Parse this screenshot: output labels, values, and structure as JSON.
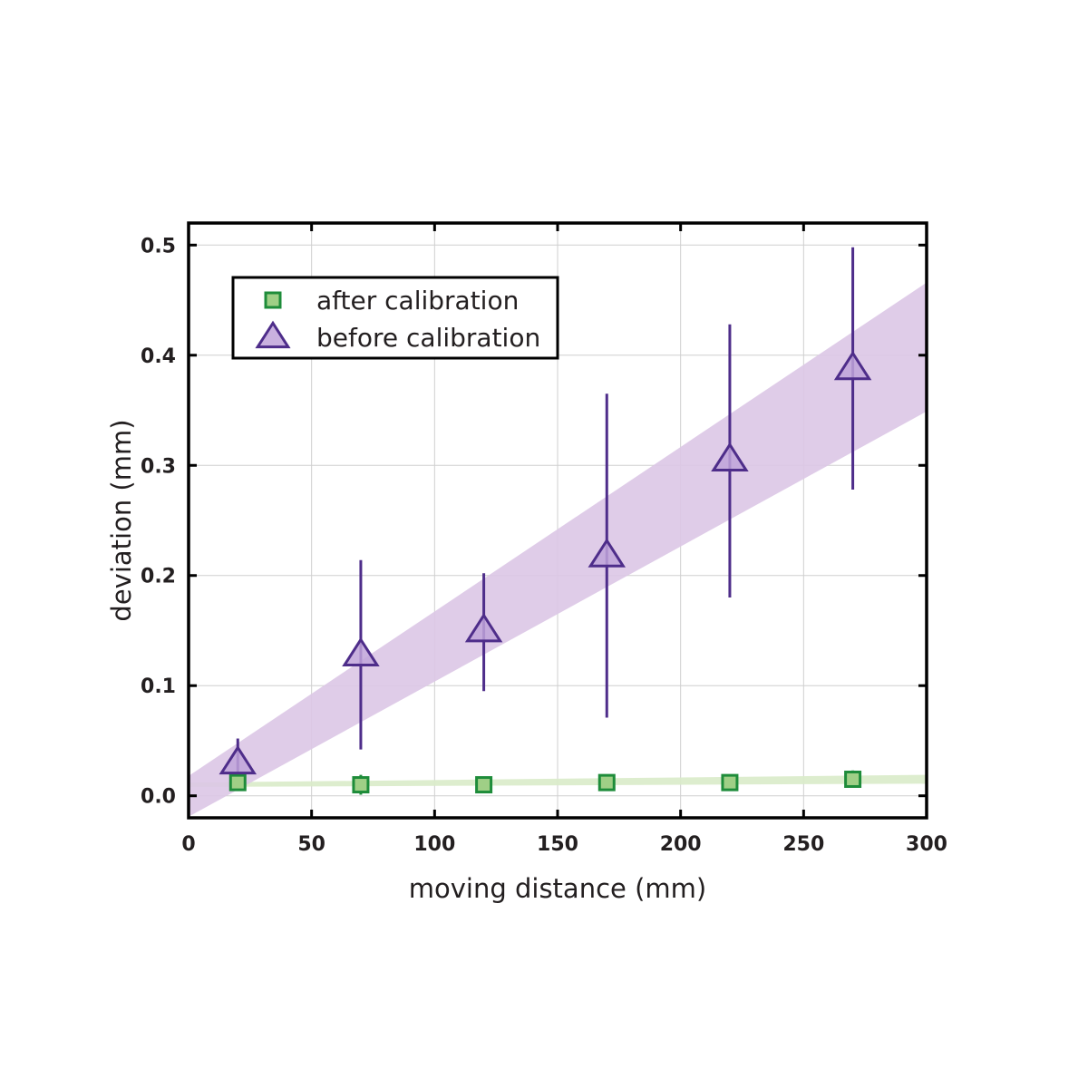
{
  "chart_data": {
    "type": "scatter",
    "title": "",
    "xlabel": "moving distance (mm)",
    "ylabel": "deviation (mm)",
    "xlim": [
      0,
      300
    ],
    "ylim": [
      -0.02,
      0.52
    ],
    "x_ticks": [
      0,
      50,
      100,
      150,
      200,
      250,
      300
    ],
    "x_tick_labels": [
      "0",
      "50",
      "100",
      "150",
      "200",
      "250",
      "300"
    ],
    "y_ticks": [
      0.0,
      0.1,
      0.2,
      0.3,
      0.4,
      0.5
    ],
    "y_tick_labels": [
      "0.0",
      "0.1",
      "0.2",
      "0.3",
      "0.4",
      "0.5"
    ],
    "grid": true,
    "legend_position": "top-left",
    "series": [
      {
        "name": "after calibration",
        "marker": "square",
        "color": "#1e8c3a",
        "fill": "#9fcf86",
        "band_color": "#d9ebc9",
        "x": [
          20,
          70,
          120,
          170,
          220,
          270
        ],
        "y": [
          0.012,
          0.01,
          0.01,
          0.012,
          0.012,
          0.015
        ],
        "err_low": [
          0.004,
          0.009,
          0.002,
          0.003,
          0.002,
          0.007
        ],
        "err_high": [
          0.004,
          0.009,
          0.002,
          0.003,
          0.002,
          0.008
        ],
        "band": {
          "x": [
            0,
            300
          ],
          "lower": [
            0.008,
            0.011
          ],
          "upper": [
            0.012,
            0.019
          ]
        }
      },
      {
        "name": "before calibration",
        "marker": "triangle",
        "color": "#4e2d8a",
        "fill": "#c0a3d9",
        "band_color": "#dcc6e6",
        "x": [
          20,
          70,
          120,
          170,
          220,
          270
        ],
        "y": [
          0.03,
          0.128,
          0.15,
          0.218,
          0.305,
          0.388
        ],
        "err_low": [
          0.018,
          0.086,
          0.055,
          0.147,
          0.125,
          0.11
        ],
        "err_high": [
          0.022,
          0.086,
          0.052,
          0.147,
          0.123,
          0.11
        ],
        "band": {
          "x": [
            0,
            300
          ],
          "lower": [
            -0.019,
            0.349
          ],
          "upper": [
            0.018,
            0.466
          ]
        }
      }
    ]
  }
}
